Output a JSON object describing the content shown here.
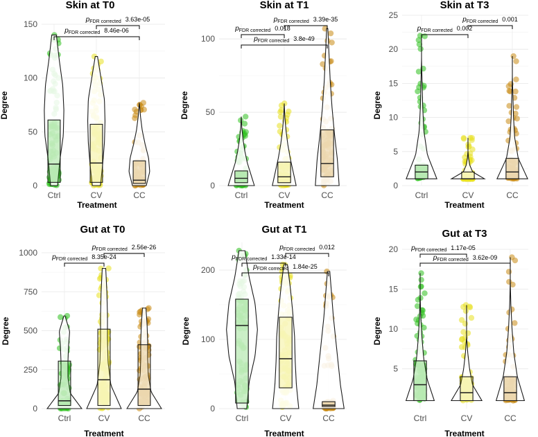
{
  "chart_data": [
    {
      "type": "violin",
      "title": "Skin at T0",
      "xlabel": "Treatment",
      "ylabel": "Degree",
      "categories": [
        "Ctrl",
        "CV",
        "CC"
      ],
      "ylim": [
        0,
        150
      ],
      "yticks": [
        0,
        50,
        100,
        150
      ],
      "colors": [
        "#2ec01e",
        "#e8e020",
        "#c98a14"
      ],
      "box": [
        {
          "min": 0,
          "q1": 3,
          "median": 20,
          "q3": 61,
          "max": 140
        },
        {
          "min": 0,
          "q1": 3,
          "median": 21,
          "q3": 57,
          "max": 120
        },
        {
          "min": 0,
          "q1": 2,
          "median": 5,
          "q3": 23,
          "max": 77
        }
      ],
      "comparisons": [
        {
          "p_label": "p",
          "sub_label": "FDR corrected",
          "value": "3.63e-05",
          "from": "CV",
          "to": "CC"
        },
        {
          "p_label": "p",
          "sub_label": "FDR corrected",
          "value": "8.46e-06",
          "from": "Ctrl",
          "to": "CC"
        }
      ]
    },
    {
      "type": "violin",
      "title": "Skin at T1",
      "xlabel": "Treatment",
      "ylabel": "Degree",
      "categories": [
        "Ctrl",
        "CV",
        "CC"
      ],
      "ylim": [
        0,
        110
      ],
      "yticks": [
        0,
        50,
        100
      ],
      "colors": [
        "#2ec01e",
        "#e8e020",
        "#c98a14"
      ],
      "box": [
        {
          "min": 0,
          "q1": 2,
          "median": 5,
          "q3": 10,
          "max": 47
        },
        {
          "min": 0,
          "q1": 2,
          "median": 6,
          "q3": 16,
          "max": 56
        },
        {
          "min": 0,
          "q1": 6,
          "median": 15,
          "q3": 38,
          "max": 107
        }
      ],
      "comparisons": [
        {
          "p_label": "p",
          "sub_label": "FDR corrected",
          "value": "3.39e-35",
          "from": "CV",
          "to": "CC"
        },
        {
          "p_label": "p",
          "sub_label": "FDR corrected",
          "value": "0.018",
          "from": "Ctrl",
          "to": "CV"
        },
        {
          "p_label": "p",
          "sub_label": "FDR corrected",
          "value": "3.8e-49",
          "from": "Ctrl",
          "to": "CC"
        }
      ]
    },
    {
      "type": "violin",
      "title": "Skin at T3",
      "xlabel": "Treatment",
      "ylabel": "Degree",
      "categories": [
        "Ctrl",
        "CV",
        "CC"
      ],
      "ylim": [
        0,
        25
      ],
      "yticks": [
        0,
        5,
        10,
        15,
        20,
        25
      ],
      "colors": [
        "#2ec01e",
        "#e8e020",
        "#c98a14"
      ],
      "box": [
        {
          "min": 1,
          "q1": 1,
          "median": 2,
          "q3": 3,
          "max": 22
        },
        {
          "min": 1,
          "q1": 1,
          "median": 1,
          "q3": 2,
          "max": 7
        },
        {
          "min": 1,
          "q1": 1,
          "median": 2,
          "q3": 4,
          "max": 19
        }
      ],
      "comparisons": [
        {
          "p_label": "p",
          "sub_label": "FDR corrected",
          "value": "0.001",
          "from": "CV",
          "to": "CC"
        },
        {
          "p_label": "p",
          "sub_label": "FDR corrected",
          "value": "0.002",
          "from": "Ctrl",
          "to": "CV"
        }
      ]
    },
    {
      "type": "violin",
      "title": "Gut at T0",
      "xlabel": "Treatment",
      "ylabel": "Degree",
      "categories": [
        "Ctrl",
        "CV",
        "CC"
      ],
      "ylim": [
        0,
        1000
      ],
      "yticks": [
        0,
        250,
        500,
        750,
        1000
      ],
      "colors": [
        "#2ec01e",
        "#e8e020",
        "#c98a14"
      ],
      "box": [
        {
          "min": 0,
          "q1": 20,
          "median": 50,
          "q3": 305,
          "max": 595
        },
        {
          "min": 0,
          "q1": 20,
          "median": 185,
          "q3": 510,
          "max": 900
        },
        {
          "min": 0,
          "q1": 20,
          "median": 125,
          "q3": 410,
          "max": 645
        }
      ],
      "comparisons": [
        {
          "p_label": "p",
          "sub_label": "FDR corrected",
          "value": "2.56e-26",
          "from": "CV",
          "to": "CC"
        },
        {
          "p_label": "p",
          "sub_label": "FDR corrected",
          "value": "8.35e-24",
          "from": "Ctrl",
          "to": "CV"
        }
      ]
    },
    {
      "type": "violin",
      "title": "Gut at T1",
      "xlabel": "Treatment",
      "ylabel": "Degree",
      "categories": [
        "Ctrl",
        "CV",
        "CC"
      ],
      "ylim": [
        0,
        240
      ],
      "yticks": [
        0,
        100,
        200
      ],
      "colors": [
        "#2ec01e",
        "#e8e020",
        "#c98a14"
      ],
      "box": [
        {
          "min": 0,
          "q1": 8,
          "median": 120,
          "q3": 158,
          "max": 228
        },
        {
          "min": 0,
          "q1": 30,
          "median": 72,
          "q3": 132,
          "max": 208
        },
        {
          "min": 0,
          "q1": 3,
          "median": 5,
          "q3": 10,
          "max": 198
        }
      ],
      "comparisons": [
        {
          "p_label": "p",
          "sub_label": "FDR corrected",
          "value": "0.012",
          "from": "CV",
          "to": "CC"
        },
        {
          "p_label": "p",
          "sub_label": "FDR corrected",
          "value": "1.33e-14",
          "from": "Ctrl",
          "to": "CV"
        },
        {
          "p_label": "p",
          "sub_label": "FDR corrected",
          "value": "1.84e-25",
          "from": "Ctrl",
          "to": "CC"
        }
      ]
    },
    {
      "type": "violin",
      "title": "Gut at T3",
      "xlabel": "Treatment",
      "ylabel": "Degree",
      "categories": [
        "Ctrl",
        "CV",
        "CC"
      ],
      "ylim": [
        0,
        20
      ],
      "yticks": [
        5,
        10,
        15,
        20
      ],
      "colors": [
        "#2ec01e",
        "#e8e020",
        "#c98a14"
      ],
      "box": [
        {
          "min": 1,
          "q1": 1,
          "median": 3,
          "q3": 6,
          "max": 17
        },
        {
          "min": 1,
          "q1": 1,
          "median": 2,
          "q3": 4,
          "max": 13
        },
        {
          "min": 1,
          "q1": 1,
          "median": 2,
          "q3": 4,
          "max": 19
        }
      ],
      "comparisons": [
        {
          "p_label": "p",
          "sub_label": "FDR corrected",
          "value": "1.17e-05",
          "from": "Ctrl",
          "to": "CV"
        },
        {
          "p_label": "p",
          "sub_label": "FDR corrected",
          "value": "3.62e-09",
          "from": "Ctrl",
          "to": "CC"
        }
      ]
    }
  ]
}
